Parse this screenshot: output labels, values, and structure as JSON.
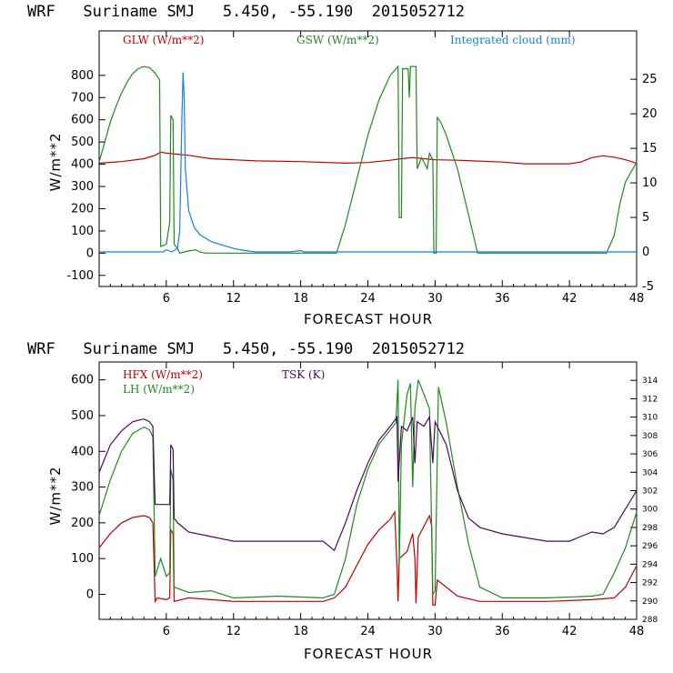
{
  "chart_data": [
    {
      "type": "line",
      "title": "WRF   Suriname SMJ   5.450, -55.190  2015052712",
      "xlabel": "FORECAST HOUR",
      "ylabel": "W/m**2",
      "xlim": [
        0,
        48
      ],
      "xticks": [
        6,
        12,
        18,
        24,
        30,
        36,
        42,
        48
      ],
      "ylim": [
        -150,
        1000
      ],
      "yticks": [
        -100,
        0,
        100,
        200,
        300,
        400,
        500,
        600,
        700,
        800
      ],
      "y2lim": [
        -5,
        32
      ],
      "y2ticks": [
        -5,
        0,
        5,
        10,
        15,
        20,
        25
      ],
      "series": [
        {
          "name": "GLW (W/m**2)",
          "axis": "left",
          "color": "#c00000",
          "points": [
            [
              0,
              405
            ],
            [
              2,
              412
            ],
            [
              4,
              425
            ],
            [
              5,
              440
            ],
            [
              5.5,
              455
            ],
            [
              6,
              450
            ],
            [
              7,
              445
            ],
            [
              8,
              440
            ],
            [
              10,
              425
            ],
            [
              12,
              420
            ],
            [
              14,
              415
            ],
            [
              18,
              412
            ],
            [
              22,
              405
            ],
            [
              24,
              408
            ],
            [
              26,
              418
            ],
            [
              27,
              425
            ],
            [
              28,
              430
            ],
            [
              29,
              425
            ],
            [
              30,
              420
            ],
            [
              32,
              418
            ],
            [
              36,
              410
            ],
            [
              38,
              402
            ],
            [
              42,
              402
            ],
            [
              43,
              410
            ],
            [
              44,
              430
            ],
            [
              45,
              438
            ],
            [
              46,
              432
            ],
            [
              47,
              420
            ],
            [
              48,
              405
            ]
          ]
        },
        {
          "name": "GSW (W/m**2)",
          "axis": "left",
          "color": "#1f8a1f",
          "points": [
            [
              0,
              410
            ],
            [
              0.5,
              500
            ],
            [
              1,
              590
            ],
            [
              1.5,
              660
            ],
            [
              2,
              720
            ],
            [
              2.5,
              770
            ],
            [
              3,
              808
            ],
            [
              3.5,
              830
            ],
            [
              4,
              840
            ],
            [
              4.5,
              835
            ],
            [
              5,
              810
            ],
            [
              5.4,
              780
            ],
            [
              5.5,
              30
            ],
            [
              6,
              40
            ],
            [
              6.3,
              140
            ],
            [
              6.4,
              620
            ],
            [
              6.6,
              600
            ],
            [
              6.7,
              40
            ],
            [
              7,
              20
            ],
            [
              7.2,
              0
            ],
            [
              8,
              10
            ],
            [
              8.6,
              15
            ],
            [
              9,
              5
            ],
            [
              9.5,
              0
            ],
            [
              21.2,
              0
            ],
            [
              22,
              130
            ],
            [
              23,
              330
            ],
            [
              24,
              530
            ],
            [
              25,
              690
            ],
            [
              26,
              800
            ],
            [
              26.7,
              840
            ],
            [
              26.8,
              160
            ],
            [
              27,
              160
            ],
            [
              27.1,
              830
            ],
            [
              27.6,
              830
            ],
            [
              27.7,
              700
            ],
            [
              27.8,
              840
            ],
            [
              28.3,
              840
            ],
            [
              28.4,
              380
            ],
            [
              28.8,
              430
            ],
            [
              29.3,
              380
            ],
            [
              29.5,
              450
            ],
            [
              29.8,
              420
            ],
            [
              29.9,
              0
            ],
            [
              30.1,
              0
            ],
            [
              30.2,
              610
            ],
            [
              30.5,
              590
            ],
            [
              31,
              530
            ],
            [
              32,
              380
            ],
            [
              33,
              170
            ],
            [
              33.8,
              0
            ],
            [
              45.3,
              0
            ],
            [
              46,
              80
            ],
            [
              46.5,
              220
            ],
            [
              47,
              320
            ],
            [
              48,
              410
            ]
          ]
        },
        {
          "name": "Integrated cloud (mm)",
          "axis": "right",
          "color": "#1a7fd6",
          "points": [
            [
              0,
              0
            ],
            [
              5.7,
              0
            ],
            [
              6,
              0.3
            ],
            [
              6.5,
              0
            ],
            [
              7,
              0.5
            ],
            [
              7.2,
              3
            ],
            [
              7.4,
              20
            ],
            [
              7.5,
              26
            ],
            [
              7.6,
              22
            ],
            [
              7.7,
              12
            ],
            [
              8,
              6
            ],
            [
              8.5,
              3.5
            ],
            [
              9,
              2.5
            ],
            [
              10,
              1.5
            ],
            [
              11,
              1
            ],
            [
              12,
              0.5
            ],
            [
              13,
              0.2
            ],
            [
              14,
              0
            ],
            [
              17,
              0
            ],
            [
              18,
              0.2
            ],
            [
              18.3,
              0
            ],
            [
              48,
              0
            ]
          ]
        }
      ],
      "legend": [
        "GLW (W/m**2)",
        "GSW (W/m**2)",
        "Integrated cloud (mm)"
      ],
      "legend_position": "top"
    },
    {
      "type": "line",
      "title": "WRF   Suriname SMJ   5.450, -55.190  2015052712",
      "xlabel": "FORECAST HOUR",
      "ylabel": "W/m**2",
      "xlim": [
        0,
        48
      ],
      "xticks": [
        6,
        12,
        18,
        24,
        30,
        36,
        42,
        48
      ],
      "ylim": [
        -70,
        650
      ],
      "yticks": [
        0,
        100,
        200,
        300,
        400,
        500,
        600
      ],
      "y2lim": [
        288,
        316
      ],
      "y2ticks": [
        288,
        290,
        292,
        294,
        296,
        298,
        300,
        302,
        304,
        306,
        308,
        310,
        312,
        314
      ],
      "series": [
        {
          "name": "HFX (W/m**2)",
          "axis": "left",
          "color": "#c00000",
          "points": [
            [
              0,
              130
            ],
            [
              1,
              170
            ],
            [
              2,
              200
            ],
            [
              3,
              215
            ],
            [
              4,
              220
            ],
            [
              4.5,
              215
            ],
            [
              4.8,
              200
            ],
            [
              5,
              -20
            ],
            [
              5.2,
              -10
            ],
            [
              6,
              -15
            ],
            [
              6.3,
              -10
            ],
            [
              6.4,
              180
            ],
            [
              6.6,
              170
            ],
            [
              6.7,
              -20
            ],
            [
              8,
              -10
            ],
            [
              10,
              -15
            ],
            [
              12,
              -20
            ],
            [
              16,
              -20
            ],
            [
              20,
              -20
            ],
            [
              21,
              -10
            ],
            [
              22,
              20
            ],
            [
              23,
              80
            ],
            [
              24,
              140
            ],
            [
              25,
              180
            ],
            [
              26,
              210
            ],
            [
              26.4,
              230
            ],
            [
              26.6,
              80
            ],
            [
              26.7,
              -20
            ],
            [
              26.8,
              100
            ],
            [
              27.5,
              120
            ],
            [
              28,
              170
            ],
            [
              28.2,
              100
            ],
            [
              28.3,
              -25
            ],
            [
              28.5,
              160
            ],
            [
              29.5,
              220
            ],
            [
              29.7,
              190
            ],
            [
              29.8,
              -30
            ],
            [
              30,
              -30
            ],
            [
              30.2,
              40
            ],
            [
              31,
              20
            ],
            [
              32,
              -5
            ],
            [
              34,
              -20
            ],
            [
              40,
              -20
            ],
            [
              44,
              -15
            ],
            [
              46,
              -10
            ],
            [
              47,
              20
            ],
            [
              48,
              80
            ]
          ]
        },
        {
          "name": "LH (W/m**2)",
          "axis": "left",
          "color": "#1f8a1f",
          "points": [
            [
              0,
              220
            ],
            [
              1,
              320
            ],
            [
              2,
              400
            ],
            [
              3,
              450
            ],
            [
              4,
              468
            ],
            [
              4.5,
              460
            ],
            [
              4.8,
              440
            ],
            [
              5,
              50
            ],
            [
              5.5,
              100
            ],
            [
              6,
              50
            ],
            [
              6.3,
              60
            ],
            [
              6.4,
              350
            ],
            [
              6.6,
              320
            ],
            [
              6.7,
              20
            ],
            [
              8,
              5
            ],
            [
              10,
              10
            ],
            [
              12,
              -10
            ],
            [
              16,
              -5
            ],
            [
              20,
              -10
            ],
            [
              21,
              0
            ],
            [
              22,
              100
            ],
            [
              23,
              250
            ],
            [
              24,
              350
            ],
            [
              25,
              420
            ],
            [
              26,
              460
            ],
            [
              26.5,
              480
            ],
            [
              26.7,
              600
            ],
            [
              26.8,
              80
            ],
            [
              27,
              420
            ],
            [
              27.5,
              560
            ],
            [
              27.8,
              590
            ],
            [
              28,
              300
            ],
            [
              28.2,
              520
            ],
            [
              28.5,
              600
            ],
            [
              29,
              560
            ],
            [
              29.5,
              520
            ],
            [
              29.8,
              0
            ],
            [
              30,
              10
            ],
            [
              30.3,
              580
            ],
            [
              31,
              480
            ],
            [
              32,
              300
            ],
            [
              33,
              140
            ],
            [
              34,
              20
            ],
            [
              36,
              -10
            ],
            [
              40,
              -10
            ],
            [
              44,
              -5
            ],
            [
              45,
              0
            ],
            [
              46,
              60
            ],
            [
              47,
              130
            ],
            [
              48,
              230
            ]
          ]
        },
        {
          "name": "TSK (K)",
          "axis": "right",
          "color": "#4a0a5a",
          "points": [
            [
              0,
              304
            ],
            [
              1,
              307
            ],
            [
              2,
              308.5
            ],
            [
              3,
              309.5
            ],
            [
              4,
              309.8
            ],
            [
              4.5,
              309.5
            ],
            [
              4.8,
              309
            ],
            [
              5,
              300.5
            ],
            [
              5.5,
              300.5
            ],
            [
              6,
              300.5
            ],
            [
              6.3,
              300.5
            ],
            [
              6.4,
              307
            ],
            [
              6.6,
              306.5
            ],
            [
              6.7,
              299
            ],
            [
              7,
              298.5
            ],
            [
              8,
              297.5
            ],
            [
              10,
              297
            ],
            [
              12,
              296.5
            ],
            [
              14,
              296.5
            ],
            [
              18,
              296.5
            ],
            [
              20,
              296.5
            ],
            [
              21,
              295.5
            ],
            [
              22,
              298.5
            ],
            [
              23,
              302
            ],
            [
              24,
              305
            ],
            [
              25,
              307.5
            ],
            [
              26,
              309
            ],
            [
              26.6,
              310
            ],
            [
              26.7,
              303
            ],
            [
              27,
              309
            ],
            [
              27.5,
              308.5
            ],
            [
              28,
              310
            ],
            [
              28.2,
              305
            ],
            [
              28.4,
              309.5
            ],
            [
              29,
              309
            ],
            [
              29.5,
              310
            ],
            [
              29.8,
              305
            ],
            [
              30,
              309.5
            ],
            [
              31,
              307
            ],
            [
              32,
              302
            ],
            [
              33,
              299
            ],
            [
              34,
              298
            ],
            [
              36,
              297.3
            ],
            [
              40,
              296.5
            ],
            [
              42,
              296.5
            ],
            [
              43,
              297
            ],
            [
              44,
              297.5
            ],
            [
              45,
              297.3
            ],
            [
              46,
              298
            ],
            [
              47,
              300
            ],
            [
              48,
              302
            ]
          ]
        }
      ],
      "legend": [
        "HFX (W/m**2)",
        "LH (W/m**2)",
        "TSK (K)"
      ],
      "legend_position": "top-left"
    }
  ]
}
